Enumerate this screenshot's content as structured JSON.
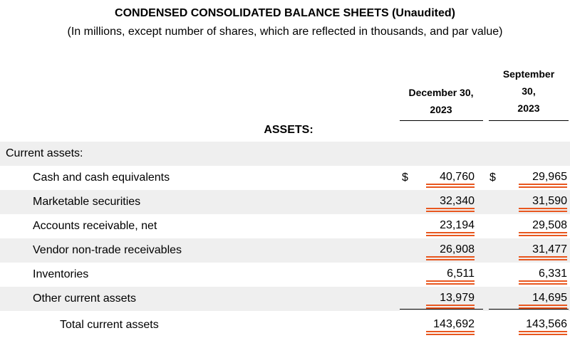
{
  "header": {
    "title": "CONDENSED CONSOLIDATED BALANCE SHEETS (Unaudited)",
    "subtitle": "(In millions, except number of shares, which are reflected in thousands, and par value)"
  },
  "columns": {
    "dec": [
      "December 30,",
      "2023"
    ],
    "sep": [
      "September",
      "30,",
      "2023"
    ]
  },
  "section": "ASSETS:",
  "rows": [
    {
      "label": "Current assets:",
      "dec": "",
      "sep": "",
      "dec_cur": "",
      "sep_cur": ""
    },
    {
      "label": "Cash and cash equivalents",
      "dec": "40,760",
      "sep": "29,965",
      "dec_cur": "$",
      "sep_cur": "$"
    },
    {
      "label": "Marketable securities",
      "dec": "32,340",
      "sep": "31,590",
      "dec_cur": "",
      "sep_cur": ""
    },
    {
      "label": "Accounts receivable, net",
      "dec": "23,194",
      "sep": "29,508",
      "dec_cur": "",
      "sep_cur": ""
    },
    {
      "label": "Vendor non-trade receivables",
      "dec": "26,908",
      "sep": "31,477",
      "dec_cur": "",
      "sep_cur": ""
    },
    {
      "label": "Inventories",
      "dec": "6,511",
      "sep": "6,331",
      "dec_cur": "",
      "sep_cur": ""
    },
    {
      "label": "Other current assets",
      "dec": "13,979",
      "sep": "14,695",
      "dec_cur": "",
      "sep_cur": ""
    },
    {
      "label": "Total current assets",
      "dec": "143,692",
      "sep": "143,566",
      "dec_cur": "",
      "sep_cur": ""
    }
  ],
  "colors": {
    "highlight_underline": "#e8571f",
    "row_shade": "#efefef"
  }
}
